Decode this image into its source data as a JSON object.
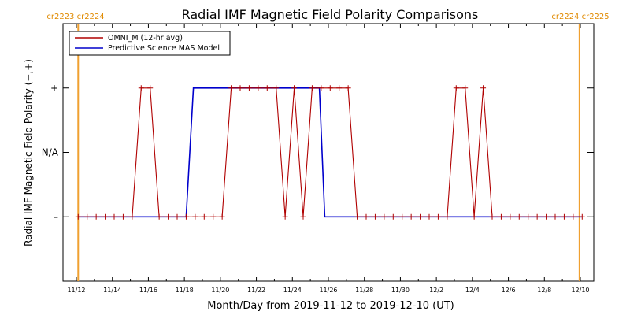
{
  "chart_data": {
    "type": "line",
    "title": "Radial IMF Magnetic Field Polarity Comparisons",
    "xlabel": "Month/Day from 2019-11-12 to 2019-12-10 (UT)",
    "ylabel": "Radial IMF Magnetic Field Polarity (−,+)",
    "x_range_days": [
      0,
      28
    ],
    "x_ticks": [
      {
        "day": 0,
        "label": "11/12"
      },
      {
        "day": 2,
        "label": "11/14"
      },
      {
        "day": 4,
        "label": "11/16"
      },
      {
        "day": 6,
        "label": "11/18"
      },
      {
        "day": 8,
        "label": "11/20"
      },
      {
        "day": 10,
        "label": "11/22"
      },
      {
        "day": 12,
        "label": "11/24"
      },
      {
        "day": 14,
        "label": "11/26"
      },
      {
        "day": 16,
        "label": "11/28"
      },
      {
        "day": 18,
        "label": "11/30"
      },
      {
        "day": 20,
        "label": "12/2"
      },
      {
        "day": 22,
        "label": "12/4"
      },
      {
        "day": 24,
        "label": "12/6"
      },
      {
        "day": 26,
        "label": "12/8"
      },
      {
        "day": 28,
        "label": "12/10"
      }
    ],
    "y_levels": [
      {
        "value": 1,
        "label": "+"
      },
      {
        "value": 0,
        "label": "N/A"
      },
      {
        "value": -1,
        "label": "–"
      }
    ],
    "y_range": [
      -2,
      2
    ],
    "carrington_markers": [
      {
        "day": 0.1,
        "label": "cr2223 cr2224",
        "side": "left"
      },
      {
        "day": 27.95,
        "label": "cr2224 cr2225",
        "side": "right"
      }
    ],
    "legend_position": "top-left",
    "series": [
      {
        "name": "OMNI_M (12-hr avg)",
        "color": "#b00000",
        "marker": "plus",
        "points": [
          [
            0.1,
            -1
          ],
          [
            0.6,
            -1
          ],
          [
            1.1,
            -1
          ],
          [
            1.6,
            -1
          ],
          [
            2.1,
            -1
          ],
          [
            2.6,
            -1
          ],
          [
            3.1,
            -1
          ],
          [
            3.6,
            1
          ],
          [
            4.1,
            1
          ],
          [
            4.6,
            -1
          ],
          [
            5.1,
            -1
          ],
          [
            5.6,
            -1
          ],
          [
            6.1,
            -1
          ],
          [
            6.6,
            -1
          ],
          [
            7.1,
            -1
          ],
          [
            7.6,
            -1
          ],
          [
            8.1,
            -1
          ],
          [
            8.6,
            1
          ],
          [
            9.1,
            1
          ],
          [
            9.6,
            1
          ],
          [
            10.1,
            1
          ],
          [
            10.6,
            1
          ],
          [
            11.1,
            1
          ],
          [
            11.6,
            -1
          ],
          [
            12.1,
            1
          ],
          [
            12.6,
            -1
          ],
          [
            13.1,
            1
          ],
          [
            13.6,
            1
          ],
          [
            14.1,
            1
          ],
          [
            14.6,
            1
          ],
          [
            15.1,
            1
          ],
          [
            15.6,
            -1
          ],
          [
            16.1,
            -1
          ],
          [
            16.6,
            -1
          ],
          [
            17.1,
            -1
          ],
          [
            17.6,
            -1
          ],
          [
            18.1,
            -1
          ],
          [
            18.6,
            -1
          ],
          [
            19.1,
            -1
          ],
          [
            19.6,
            -1
          ],
          [
            20.1,
            -1
          ],
          [
            20.6,
            -1
          ],
          [
            21.1,
            1
          ],
          [
            21.6,
            1
          ],
          [
            22.1,
            -1
          ],
          [
            22.6,
            1
          ],
          [
            23.1,
            -1
          ],
          [
            23.6,
            -1
          ],
          [
            24.1,
            -1
          ],
          [
            24.6,
            -1
          ],
          [
            25.1,
            -1
          ],
          [
            25.6,
            -1
          ],
          [
            26.1,
            -1
          ],
          [
            26.6,
            -1
          ],
          [
            27.1,
            -1
          ],
          [
            27.6,
            -1
          ],
          [
            28.1,
            -1
          ]
        ]
      },
      {
        "name": "Predictive Science MAS Model",
        "color": "#0000cc",
        "marker": "none",
        "points": [
          [
            0.1,
            -1
          ],
          [
            6.1,
            -1
          ],
          [
            6.5,
            1
          ],
          [
            13.5,
            1
          ],
          [
            13.8,
            -1
          ],
          [
            28.1,
            -1
          ]
        ]
      }
    ]
  }
}
